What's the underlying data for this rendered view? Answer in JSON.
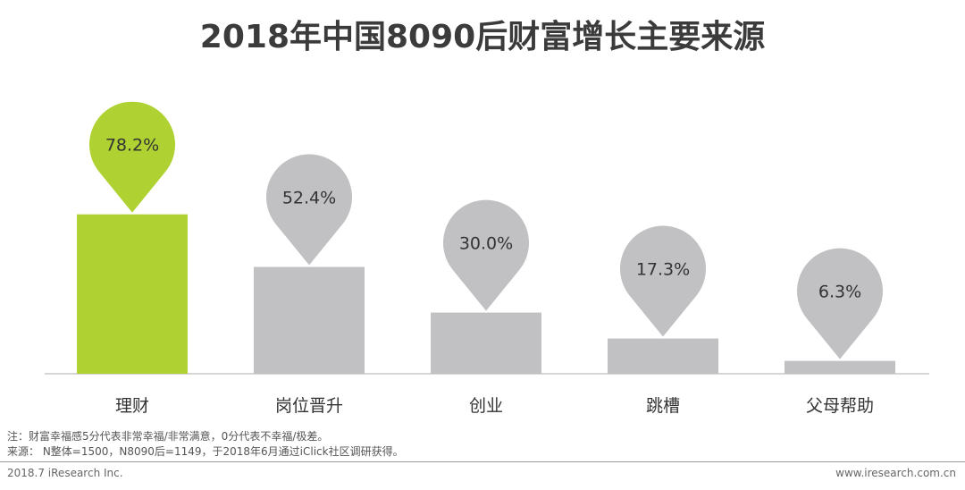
{
  "page": {
    "title": "2018年中国8090后财富增长主要来源"
  },
  "chart_data": {
    "type": "bar",
    "title": "2018年中国8090后财富增长主要来源",
    "categories": [
      "理财",
      "岗位晋升",
      "创业",
      "跳槽",
      "父母帮助"
    ],
    "values": [
      78.2,
      52.4,
      30.0,
      17.3,
      6.3
    ],
    "data_labels": [
      "78.2%",
      "52.4%",
      "30.0%",
      "17.3%",
      "6.3%"
    ],
    "highlight_index": 0,
    "colors": {
      "highlight": "#afd232",
      "default": "#c1c0c2",
      "baseline": "#c8c8c8"
    },
    "ylim": [
      0,
      100
    ],
    "grid": false
  },
  "notes": {
    "line1": "注：财富幸福感5分代表非常幸福/非常满意，0分代表不幸福/极差。",
    "line2": "来源： N整体=1500，N8090后=1149，于2018年6月通过iClick社区调研获得。"
  },
  "footer": {
    "left": "2018.7 iResearch Inc.",
    "right": "www.iresearch.com.cn"
  }
}
